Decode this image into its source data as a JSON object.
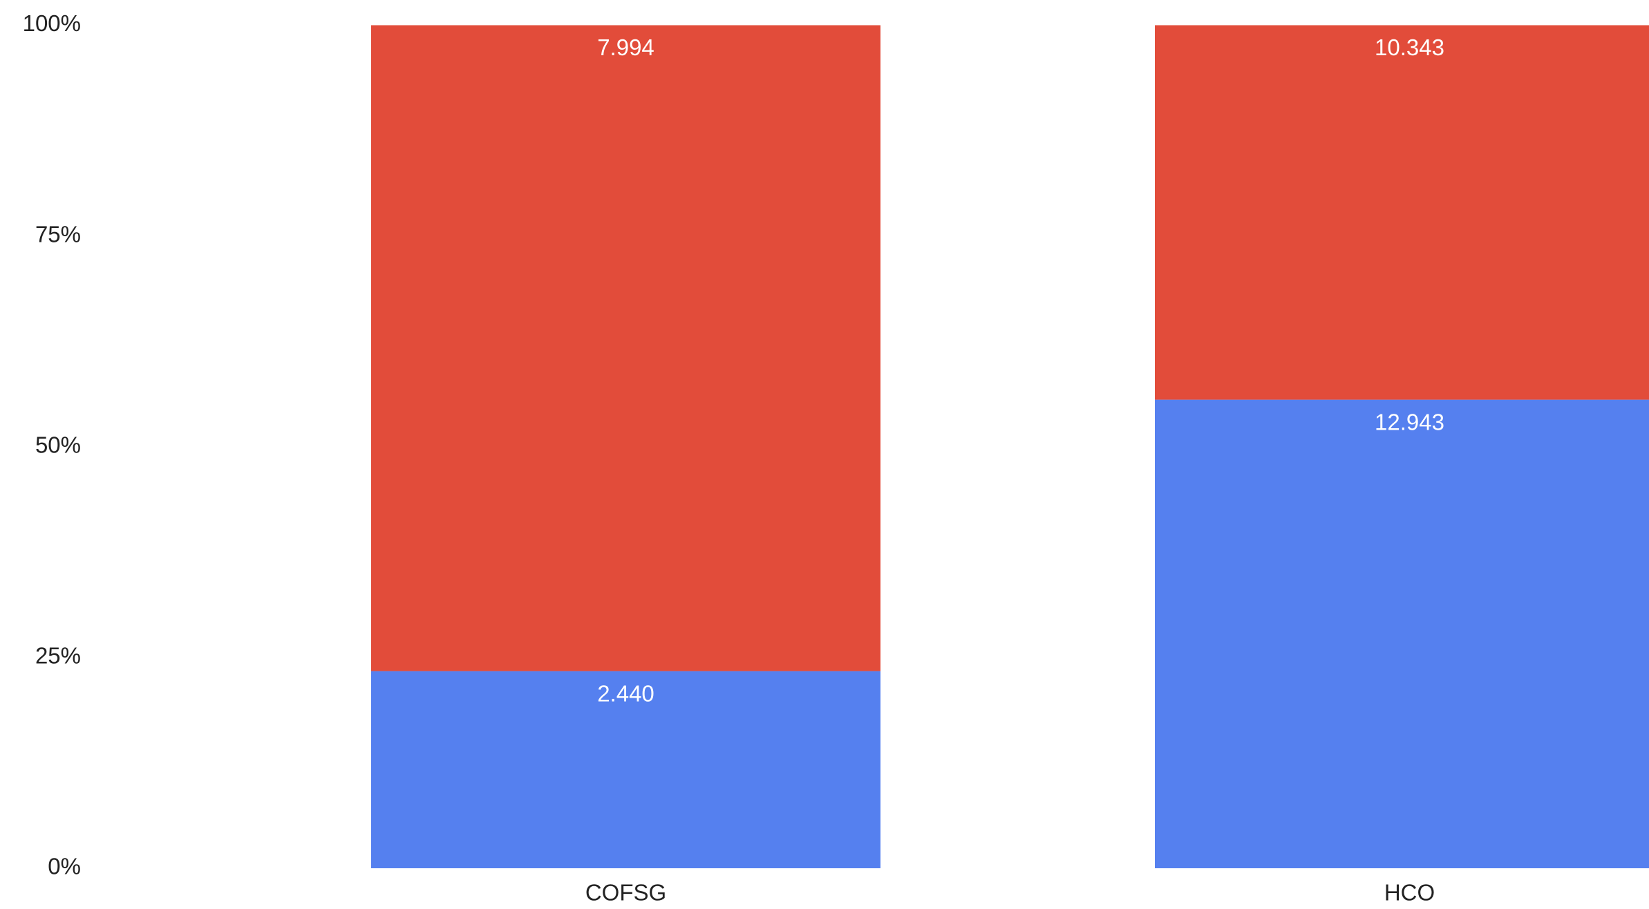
{
  "chart_data": {
    "type": "stacked_percent_bar",
    "categories": [
      "COFSG",
      "HCO"
    ],
    "series": [
      {
        "color": "#5580ef",
        "values": [
          2.44,
          12.943
        ],
        "value_labels": [
          "2.440",
          "12.943"
        ]
      },
      {
        "color": "#e24c3a",
        "values": [
          7.994,
          10.343
        ],
        "value_labels": [
          "7.994",
          "10.343"
        ]
      }
    ],
    "ylim": [
      0,
      100
    ],
    "yticks": [
      {
        "value": 0,
        "label": "0%"
      },
      {
        "value": 25,
        "label": "25%"
      },
      {
        "value": 50,
        "label": "50%"
      },
      {
        "value": 75,
        "label": "75%"
      },
      {
        "value": 100,
        "label": "100%"
      }
    ]
  }
}
